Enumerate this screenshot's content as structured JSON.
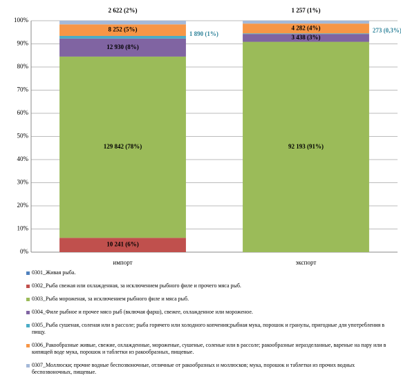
{
  "chart_data": {
    "type": "stacked_bar_100",
    "categories": [
      "импорт",
      "экспорт"
    ],
    "ylim": [
      0,
      100
    ],
    "yticks": [
      {
        "value": 0,
        "label": "0%"
      },
      {
        "value": 10,
        "label": "10%"
      },
      {
        "value": 20,
        "label": "20%"
      },
      {
        "value": 30,
        "label": "30%"
      },
      {
        "value": 40,
        "label": "40%"
      },
      {
        "value": 50,
        "label": "50%"
      },
      {
        "value": 60,
        "label": "60%"
      },
      {
        "value": 70,
        "label": "70%"
      },
      {
        "value": 80,
        "label": "80%"
      },
      {
        "value": 90,
        "label": "90%"
      },
      {
        "value": 100,
        "label": "100%"
      }
    ],
    "grid": true,
    "series": [
      {
        "name": "0301_Живая рыба.",
        "color": "#4f81bd",
        "values": [
          0,
          0
        ],
        "value_labels": [
          null,
          null
        ]
      },
      {
        "name": "0302_Рыба свежая или охлажденная, за исключением рыбного филе и прочего мяса рыб.",
        "color": "#c0504d",
        "values": [
          6.18,
          0
        ],
        "value_labels": [
          "10 241 (6%)",
          null
        ]
      },
      {
        "name": "0303_Рыба мороженая, за исключением рыбного филе и мяса рыб.",
        "color": "#9bbb59",
        "values": [
          78.32,
          90.88
        ],
        "value_labels": [
          "129 842 (78%)",
          "92 193 (91%)"
        ]
      },
      {
        "name": "0304_Филе рыбное и прочее мясо рыб (включая фарш), свежее, охлажденное или мороженое.",
        "color": "#8064a2",
        "values": [
          7.8,
          3.39
        ],
        "value_labels": [
          "12 930 (8%)",
          "3 438 (3%)"
        ]
      },
      {
        "name": "0305_Рыба сушеная, соленая или в рассоле; рыба горячего или холодного копчения;рыбная мука, порошок и гранулы, пригодные для употребления в пищу.",
        "color": "#4bacc6",
        "values": [
          1.14,
          0.27
        ],
        "value_labels": [
          "1 890 (1%)",
          "273 (0,3%)"
        ]
      },
      {
        "name": "0306_Ракообразные живые, свежие, охлажденные, мороженые, сушеные, соленые или в рассоле; ракообразные неразделанные, вареные на пару или в кипящей воде мука, порошок и таблетки из ракообразных, пищевые.",
        "color": "#f79646",
        "values": [
          4.98,
          4.22
        ],
        "value_labels": [
          "8 252 (5%)",
          "4 282 (4%)"
        ]
      },
      {
        "name": "0307_Моллюски; прочие водные беспозвоночные, отличные от ракообразных и моллюсков; мука, порошок и таблетки из прочих водных беспозвоночных, пищевые.",
        "color": "#a5b9d8",
        "values": [
          1.58,
          1.24
        ],
        "value_labels": [
          "2 622 (2%)",
          "1 257 (1%)"
        ]
      }
    ]
  }
}
